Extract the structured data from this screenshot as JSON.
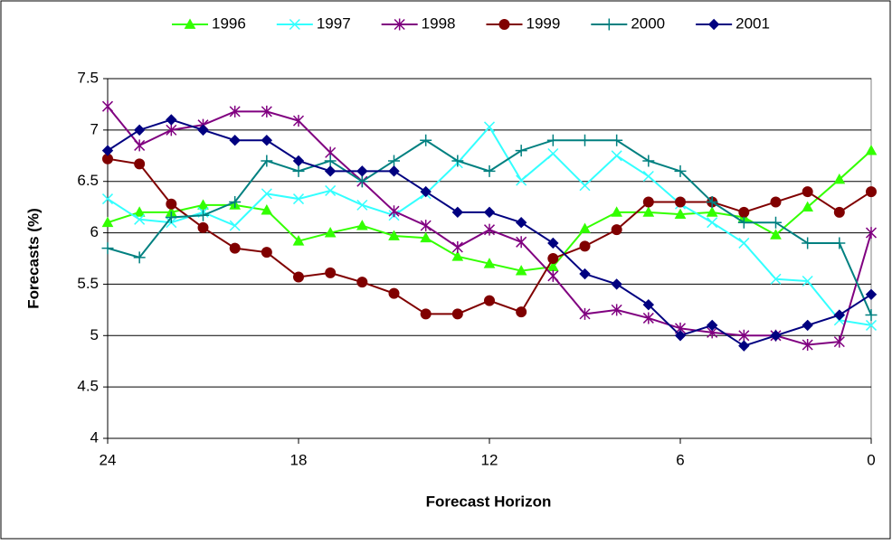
{
  "chart_data": {
    "type": "line",
    "x_label": "Forecast Horizon",
    "y_label": "Forecasts (%)",
    "x": [
      24,
      23,
      22,
      21,
      20,
      19,
      18,
      17,
      16,
      15,
      14,
      13,
      12,
      11,
      10,
      9,
      8,
      7,
      6,
      5,
      4,
      3,
      2,
      1,
      0
    ],
    "xlim": [
      24,
      0
    ],
    "xticks": [
      24,
      18,
      12,
      6,
      0
    ],
    "ylim": [
      4,
      7.5
    ],
    "yticks": [
      4,
      4.5,
      5,
      5.5,
      6,
      6.5,
      7,
      7.5
    ],
    "grid": true,
    "legend": "top",
    "series": [
      {
        "name": "1996",
        "color": "#33ff00",
        "marker": "triangle",
        "values": [
          6.1,
          6.2,
          6.2,
          6.27,
          6.27,
          6.22,
          5.92,
          6.0,
          6.07,
          5.97,
          5.95,
          5.77,
          5.7,
          5.63,
          5.67,
          6.04,
          6.2,
          6.2,
          6.18,
          6.2,
          6.15,
          5.98,
          6.25,
          6.52,
          6.8
        ]
      },
      {
        "name": "1997",
        "color": "#33ffff",
        "marker": "x",
        "values": [
          6.33,
          6.13,
          6.1,
          6.2,
          6.07,
          6.38,
          6.33,
          6.41,
          6.27,
          6.17,
          6.38,
          6.68,
          7.03,
          6.51,
          6.77,
          6.46,
          6.75,
          6.55,
          6.28,
          6.1,
          5.9,
          5.55,
          5.53,
          5.15,
          5.1
        ]
      },
      {
        "name": "1998",
        "color": "#800080",
        "marker": "star",
        "values": [
          7.23,
          6.85,
          7.0,
          7.05,
          7.18,
          7.18,
          7.09,
          6.78,
          6.5,
          6.21,
          6.07,
          5.86,
          6.03,
          5.91,
          5.58,
          5.21,
          5.25,
          5.17,
          5.07,
          5.03,
          5.0,
          5.0,
          4.91,
          4.94,
          6.0
        ]
      },
      {
        "name": "1999",
        "color": "#800000",
        "marker": "circle",
        "values": [
          6.72,
          6.67,
          6.28,
          6.05,
          5.85,
          5.81,
          5.57,
          5.61,
          5.52,
          5.41,
          5.21,
          5.21,
          5.34,
          5.23,
          5.75,
          5.87,
          6.03,
          6.3,
          6.3,
          6.3,
          6.2,
          6.3,
          6.4,
          6.2,
          6.4
        ]
      },
      {
        "name": "2000",
        "color": "#008080",
        "marker": "plus",
        "values": [
          5.85,
          5.76,
          6.15,
          6.17,
          6.3,
          6.7,
          6.6,
          6.7,
          6.5,
          6.7,
          6.9,
          6.7,
          6.6,
          6.8,
          6.9,
          6.9,
          6.9,
          6.7,
          6.6,
          6.3,
          6.1,
          6.1,
          5.9,
          5.9,
          5.2
        ]
      },
      {
        "name": "2001",
        "color": "#000080",
        "marker": "diamond",
        "values": [
          6.8,
          7.0,
          7.1,
          7.0,
          6.9,
          6.9,
          6.7,
          6.6,
          6.6,
          6.6,
          6.4,
          6.2,
          6.2,
          6.1,
          5.9,
          5.6,
          5.5,
          5.3,
          5.0,
          5.1,
          4.9,
          5.0,
          5.1,
          5.2,
          5.4
        ]
      }
    ]
  }
}
